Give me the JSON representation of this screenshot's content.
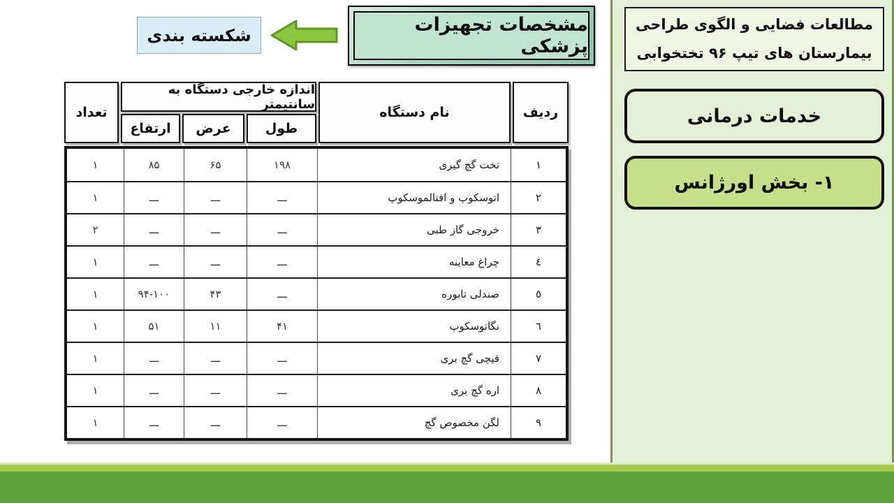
{
  "banner": {
    "spec_title": "مشخصات تجهیزات پزشکی",
    "section_label": "شکسته بندی"
  },
  "sidebar": {
    "title_line1": "مطالعات فضایی و الگوی طراحی",
    "title_line2": "بیمارستان های تیپ ۹۶ تختخوابی",
    "service_label": "خدمات درمانی",
    "department_label": "۱- بخش اورژانس"
  },
  "table": {
    "headers": {
      "radif": "ردیف",
      "name": "نام دستگاه",
      "size_group": "اندازه خارجی دستگاه به سانتیمتر",
      "length": "طول",
      "width": "عرض",
      "height": "ارتفاع",
      "count": "تعداد"
    },
    "rows": [
      {
        "radif": "۱",
        "name": "تخت گچ گیری",
        "length": "۱۹۸",
        "width": "۶۵",
        "height": "۸۵",
        "count": "۱"
      },
      {
        "radif": "۲",
        "name": "اتوسکوپ و افتالموسکوپ",
        "length": "ـــ",
        "width": "ـــ",
        "height": "ـــ",
        "count": "۱"
      },
      {
        "radif": "۳",
        "name": "خروجی گاز طبی",
        "length": "ـــ",
        "width": "ـــ",
        "height": "ـــ",
        "count": "۲"
      },
      {
        "radif": "٤",
        "name": "چراغ معاینه",
        "length": "ـــ",
        "width": "ـــ",
        "height": "ـــ",
        "count": "۱"
      },
      {
        "radif": "٥",
        "name": "صندلی تابوره",
        "length": "ـــ",
        "width": "۴۳",
        "height": "۹۴-۱۰۰",
        "count": "۱"
      },
      {
        "radif": "٦",
        "name": "نگاتوسکوپ",
        "length": "۴۱",
        "width": "۱۱",
        "height": "۵۱",
        "count": "۱"
      },
      {
        "radif": "۷",
        "name": "قیچی گچ بری",
        "length": "ـــ",
        "width": "ـــ",
        "height": "ـــ",
        "count": "۱"
      },
      {
        "radif": "۸",
        "name": "اره گچ بری",
        "length": "ـــ",
        "width": "ـــ",
        "height": "ـــ",
        "count": "۱"
      },
      {
        "radif": "۹",
        "name": "لگن مخصوص گچ",
        "length": "ـــ",
        "width": "ـــ",
        "height": "ـــ",
        "count": "۱"
      }
    ]
  },
  "icons": {
    "arrow": "left-arrow-icon"
  },
  "colors": {
    "footer_bar": "#5da23a",
    "footer_stripe": "#a3c94c",
    "sidebar_bg": "#e4f0d6",
    "sidebar_border": "#7d9558",
    "emergency_box_bg": "#c5df8a",
    "spec_box_bg": "#c1e3d1",
    "label_box_bg": "#d9edf6",
    "arrow_fill": "#8cc63e",
    "arrow_stroke": "#5f9526"
  }
}
